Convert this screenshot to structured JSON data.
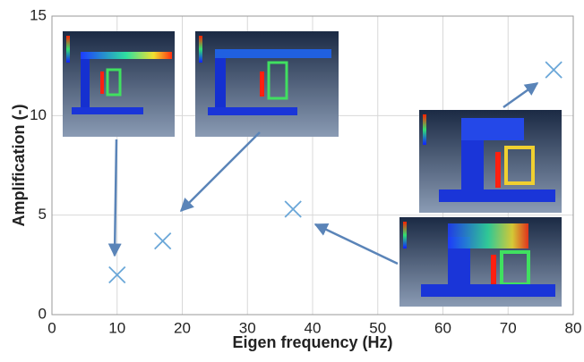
{
  "chart_data": {
    "type": "scatter",
    "x_label": "Eigen frequency  (Hz)",
    "y_label": "Amplification (-)",
    "series": [
      {
        "color": "#6aa7d8",
        "x": [
          10,
          17,
          37,
          77
        ],
        "values": [
          2,
          3.7,
          5.3,
          12.3
        ]
      }
    ],
    "xlim": [
      0,
      80
    ],
    "xticks": [
      0,
      10,
      20,
      30,
      40,
      50,
      60,
      70,
      80
    ],
    "ylim": [
      0,
      15
    ],
    "yticks": [
      0,
      5,
      10,
      15
    ],
    "grid": true,
    "marker": "x"
  }
}
